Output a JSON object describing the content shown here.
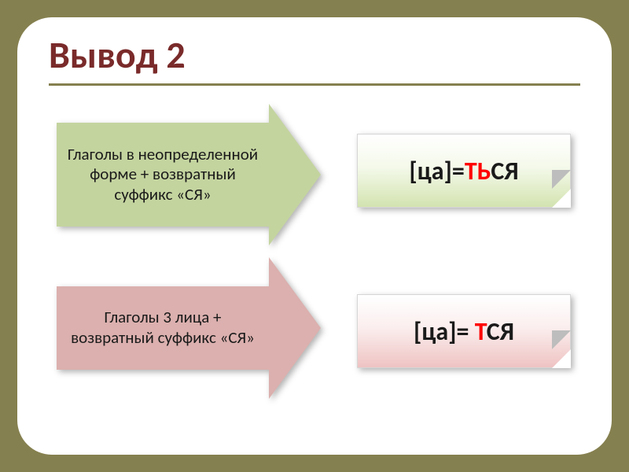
{
  "title": "Вывод 2",
  "row1": {
    "arrow_text": "Глаголы в неопределенной форме + возвратный суффикс «СЯ»",
    "formula_pre": "[ца]=",
    "formula_hl": "ТЬ",
    "formula_post": "СЯ"
  },
  "row2": {
    "arrow_text": "Глаголы 3 лица + возвратный суффикс «СЯ»",
    "formula_pre": "[ца]= ",
    "formula_hl": "Т",
    "formula_post": "СЯ"
  },
  "colors": {
    "page_bg": "#85804f",
    "panel_bg": "#ffffff",
    "title_color": "#7a2a2a",
    "divider_color": "#85804f",
    "arrow_green": "#c4d49f",
    "arrow_red": "#dbb0ae",
    "highlight": "#ff0000",
    "text": "#1a1a1a"
  }
}
